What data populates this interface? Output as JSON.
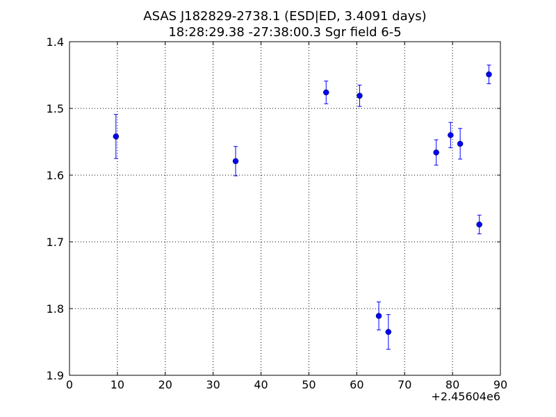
{
  "chart_data": {
    "type": "scatter",
    "title": "ASAS J182829-2738.1 (ESD|ED, 3.4091 days)",
    "subtitle": "18:28:29.38 -27:38:00.3 Sgr field 6-5",
    "xlabel": "",
    "ylabel": "",
    "x_offset_label": "+2.45604e6",
    "xlim": [
      0,
      90
    ],
    "ylim": [
      1.4,
      1.9
    ],
    "y_inverted": true,
    "x_ticks": [
      0,
      10,
      20,
      30,
      40,
      50,
      60,
      70,
      80,
      90
    ],
    "x_tick_labels": [
      "0",
      "10",
      "20",
      "30",
      "40",
      "50",
      "60",
      "70",
      "80",
      "90"
    ],
    "y_ticks": [
      1.4,
      1.5,
      1.6,
      1.7,
      1.8,
      1.9
    ],
    "y_tick_labels": [
      "1.4",
      "1.5",
      "1.6",
      "1.7",
      "1.8",
      "1.9"
    ],
    "grid": true,
    "marker_color": "#0000ff",
    "points": [
      {
        "x": 9.7,
        "y": 1.542,
        "err": 0.033
      },
      {
        "x": 34.7,
        "y": 1.579,
        "err": 0.022
      },
      {
        "x": 53.6,
        "y": 1.476,
        "err": 0.017
      },
      {
        "x": 60.6,
        "y": 1.481,
        "err": 0.016
      },
      {
        "x": 64.6,
        "y": 1.811,
        "err": 0.021
      },
      {
        "x": 66.6,
        "y": 1.835,
        "err": 0.026
      },
      {
        "x": 76.6,
        "y": 1.566,
        "err": 0.019
      },
      {
        "x": 79.6,
        "y": 1.54,
        "err": 0.019
      },
      {
        "x": 81.6,
        "y": 1.553,
        "err": 0.023
      },
      {
        "x": 85.6,
        "y": 1.674,
        "err": 0.014
      },
      {
        "x": 87.6,
        "y": 1.449,
        "err": 0.014
      }
    ]
  }
}
